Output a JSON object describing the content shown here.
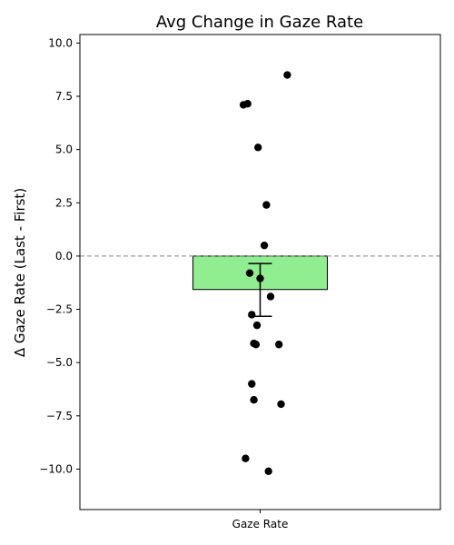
{
  "chart_data": {
    "type": "bar",
    "title": "Avg Change in Gaze Rate",
    "xlabel": "",
    "ylabel": "Δ Gaze Rate (Last - First)",
    "categories": [
      "Gaze Rate"
    ],
    "values": [
      -1.57
    ],
    "error": {
      "lower": -2.83,
      "upper": -0.35
    },
    "ylim": [
      -11.9,
      10.4
    ],
    "yticks": [
      10.0,
      7.5,
      5.0,
      2.5,
      0.0,
      -2.5,
      -5.0,
      -7.5,
      -10.0
    ],
    "ytick_labels": [
      "10.0",
      "7.5",
      "5.0",
      "2.5",
      "0.0",
      "−2.5",
      "−5.0",
      "−7.5",
      "−10.0"
    ],
    "reference_line": {
      "y": 0.0,
      "style": "dashed",
      "color": "#808080"
    },
    "grid": false,
    "bar_color": "#90ee90",
    "point_color": "#000000",
    "points": [
      {
        "jitter": -0.08,
        "value": 7.1
      },
      {
        "jitter": -0.06,
        "value": 7.15
      },
      {
        "jitter": 0.13,
        "value": 8.5
      },
      {
        "jitter": -0.01,
        "value": 5.1
      },
      {
        "jitter": 0.03,
        "value": 2.4
      },
      {
        "jitter": 0.02,
        "value": 0.5
      },
      {
        "jitter": -0.05,
        "value": -0.8
      },
      {
        "jitter": 0.0,
        "value": -1.05
      },
      {
        "jitter": 0.05,
        "value": -1.9
      },
      {
        "jitter": -0.04,
        "value": -2.75
      },
      {
        "jitter": -0.015,
        "value": -3.25
      },
      {
        "jitter": -0.03,
        "value": -4.1
      },
      {
        "jitter": -0.02,
        "value": -4.15
      },
      {
        "jitter": 0.09,
        "value": -4.15
      },
      {
        "jitter": -0.04,
        "value": -6.0
      },
      {
        "jitter": -0.03,
        "value": -6.75
      },
      {
        "jitter": 0.1,
        "value": -6.95
      },
      {
        "jitter": -0.07,
        "value": -9.5
      },
      {
        "jitter": 0.04,
        "value": -10.1
      }
    ]
  }
}
